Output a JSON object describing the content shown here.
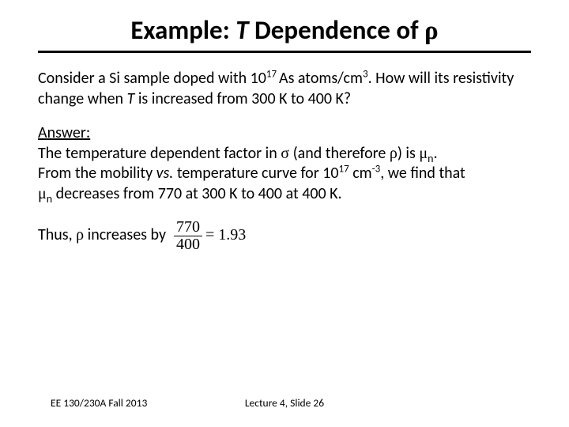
{
  "title": {
    "prefix": "Example: ",
    "tvar": "T",
    "mid": " Dependence of ",
    "rho": "ρ"
  },
  "question": {
    "l1a": "Consider a Si sample doped with 10",
    "exp17": "17 ",
    "l1b": "As atoms/cm",
    "exp3": "3",
    "l1c": ".  How will its ",
    "l2a": "resistivity change when ",
    "tvar": "T",
    "l2b": " is increased from 300 K to 400 K?"
  },
  "answer": {
    "label": "Answer:",
    "l1a": "The temperature dependent factor in ",
    "sigma": "σ",
    "l1b": " (and therefore ",
    "rho": "ρ",
    "l1c": ") is ",
    "mu": "μ",
    "sub_n": "n",
    "l1d": ".",
    "l2a": "From the mobility ",
    "vs": "vs.",
    "l2b": " temperature curve for 10",
    "exp17": "17",
    "l2c": " cm",
    "expm3": "-3",
    "l2d": ", we find that ",
    "l3a": " decreases from 770 at 300 K to 400 at 400 K."
  },
  "conclusion": {
    "a": "Thus, ",
    "rho": "ρ",
    "b": " increases by",
    "frac_num": "770",
    "frac_den": "400",
    "eq": " = 1.93"
  },
  "footer": {
    "left": "EE 130/230A Fall 2013",
    "center": "Lecture 4, Slide 26"
  },
  "colors": {
    "background": "#ffffff",
    "text": "#000000",
    "rule": "#000000"
  }
}
